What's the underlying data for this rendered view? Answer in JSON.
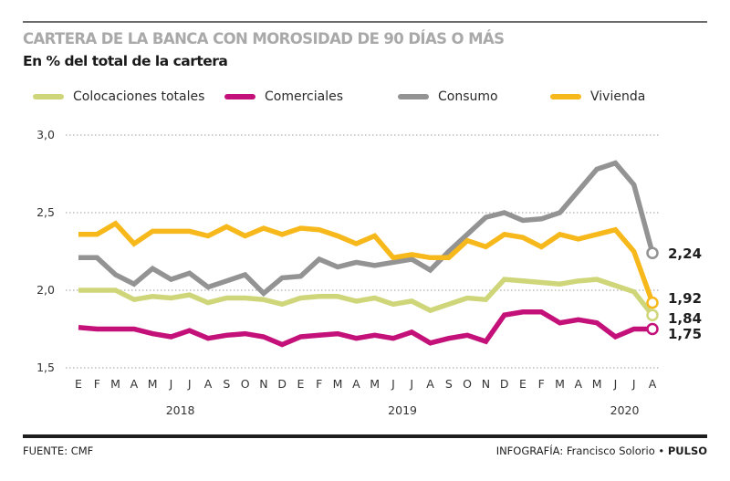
{
  "header": {
    "title": "CARTERA DE LA BANCA CON MOROSIDAD DE 90 DÍAS O MÁS",
    "subtitle": "En % del total de la cartera"
  },
  "footer": {
    "source": "FUENTE: CMF",
    "credit_prefix": "INFOGRAFÍA: Francisco Solorio •",
    "credit_brand": "PULSO"
  },
  "chart_data": {
    "type": "line",
    "title": "CARTERA DE LA BANCA CON MOROSIDAD DE 90 DÍAS O MÁS",
    "subtitle": "En % del total de la cartera",
    "xlabel": "",
    "ylabel": "",
    "ylim": [
      1.5,
      3.0
    ],
    "yticks": [
      1.5,
      2.0,
      2.5,
      3.0
    ],
    "ytick_labels": [
      "1,5",
      "2,0",
      "2,5",
      "3,0"
    ],
    "grid": "horizontal-dotted",
    "legend_position": "top",
    "x": [
      "E",
      "F",
      "M",
      "A",
      "M",
      "J",
      "J",
      "A",
      "S",
      "O",
      "N",
      "D",
      "E",
      "F",
      "M",
      "A",
      "M",
      "J",
      "J",
      "A",
      "S",
      "O",
      "N",
      "D",
      "E",
      "F",
      "M",
      "A",
      "M",
      "J",
      "J",
      "A"
    ],
    "year_labels": [
      {
        "label": "2018",
        "center_index": 5.5
      },
      {
        "label": "2019",
        "center_index": 17.5
      },
      {
        "label": "2020",
        "center_index": 29.5
      }
    ],
    "series": [
      {
        "name": "Colocaciones totales",
        "color": "#cfd67a",
        "end_label": "1,84",
        "values": [
          2.0,
          2.0,
          2.0,
          1.94,
          1.96,
          1.95,
          1.97,
          1.92,
          1.95,
          1.95,
          1.94,
          1.91,
          1.95,
          1.96,
          1.96,
          1.93,
          1.95,
          1.91,
          1.93,
          1.87,
          1.91,
          1.95,
          1.94,
          2.07,
          2.06,
          2.05,
          2.04,
          2.06,
          2.07,
          2.03,
          1.99,
          1.84
        ]
      },
      {
        "name": "Comerciales",
        "color": "#c4117a",
        "end_label": "1,75",
        "values": [
          1.76,
          1.75,
          1.75,
          1.75,
          1.72,
          1.7,
          1.74,
          1.69,
          1.71,
          1.72,
          1.7,
          1.65,
          1.7,
          1.71,
          1.72,
          1.69,
          1.71,
          1.69,
          1.73,
          1.66,
          1.69,
          1.71,
          1.67,
          1.84,
          1.86,
          1.86,
          1.79,
          1.81,
          1.79,
          1.7,
          1.75,
          1.75
        ]
      },
      {
        "name": "Consumo",
        "color": "#939393",
        "end_label": "2,24",
        "values": [
          2.21,
          2.21,
          2.1,
          2.04,
          2.14,
          2.07,
          2.11,
          2.02,
          2.06,
          2.1,
          1.98,
          2.08,
          2.09,
          2.2,
          2.15,
          2.18,
          2.16,
          2.18,
          2.2,
          2.13,
          2.25,
          2.36,
          2.47,
          2.5,
          2.45,
          2.46,
          2.5,
          2.64,
          2.78,
          2.82,
          2.68,
          2.24
        ]
      },
      {
        "name": "Vivienda",
        "color": "#f6b81a",
        "end_label": "1,92",
        "values": [
          2.36,
          2.36,
          2.43,
          2.3,
          2.38,
          2.38,
          2.38,
          2.35,
          2.41,
          2.35,
          2.4,
          2.36,
          2.4,
          2.39,
          2.35,
          2.3,
          2.35,
          2.21,
          2.23,
          2.21,
          2.21,
          2.32,
          2.28,
          2.36,
          2.34,
          2.28,
          2.36,
          2.33,
          2.36,
          2.39,
          2.25,
          1.92
        ]
      }
    ]
  }
}
